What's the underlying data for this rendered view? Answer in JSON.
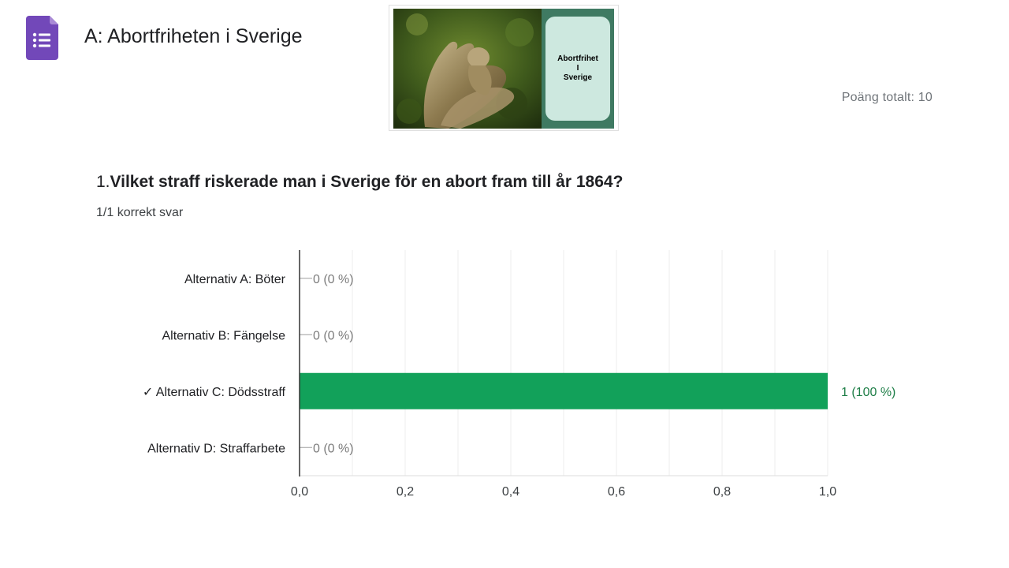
{
  "app": {
    "icon": "google-forms-icon",
    "icon_color": "#7248b9",
    "title": "A: Abortfriheten i Sverige"
  },
  "header_image": {
    "card_text": "Abortfrihet\nI\nSverige"
  },
  "total_points": "Poäng totalt: 10",
  "question": {
    "number": "1.",
    "text": "Vilket straff riskerade man i Sverige för en abort fram till år 1864?",
    "correct_count": "1/1 korrekt svar"
  },
  "chart_data": {
    "type": "bar",
    "orientation": "horizontal",
    "categories": [
      "Alternativ A: Böter",
      "Alternativ B: Fängelse",
      "✓ Alternativ C: Dödsstraff",
      "Alternativ D: Straffarbete"
    ],
    "values": [
      0,
      0,
      1,
      0
    ],
    "value_labels": [
      "0 (0 %)",
      "0 (0 %)",
      "1 (100 %)",
      "0 (0 %)"
    ],
    "correct_index": 2,
    "xlim": [
      0,
      1.0
    ],
    "ticks": [
      0,
      0.2,
      0.4,
      0.6,
      0.8,
      1.0
    ],
    "tick_labels": [
      "0,0",
      "0,2",
      "0,4",
      "0,6",
      "0,8",
      "1,0"
    ],
    "grid": true,
    "colors": {
      "bar": "#12a15a",
      "correct_label": "#1e7e47",
      "zero_label": "#7c7c7c",
      "grid": "#ececec",
      "axis": "#333333"
    }
  }
}
